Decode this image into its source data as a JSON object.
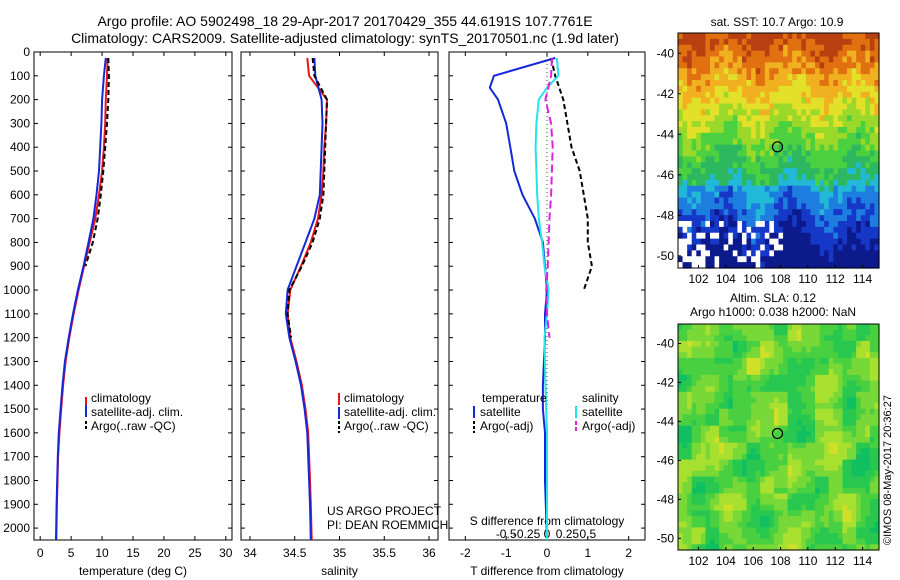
{
  "header": {
    "line1": "Argo profile: AO 5902498_18 29-Apr-2017 20170429_355 44.6191S 107.7761E",
    "line2": "Climatology: CARS2009. Satellite-adjusted climatology: synTS_20170501.nc (1.9d later)"
  },
  "colors": {
    "climatology": "#e8141a",
    "satellite": "#1428d8",
    "argo": "#000000",
    "salinity_satellite": "#22e4ee",
    "salinity_argo": "#dd22dd"
  },
  "legends": {
    "profile": [
      "climatology",
      "satellite-adj. clim.",
      "Argo(..raw -QC)"
    ],
    "diff_temperature_title": "temperature",
    "diff_salinity_title": "salinity",
    "diff_items": [
      "satellite",
      "Argo(-adj)"
    ]
  },
  "project": {
    "line1": "US ARGO PROJECT",
    "line2": "PI: DEAN ROEMMICH"
  },
  "maps": {
    "sst_title": "sat. SST: 10.7  Argo: 10.9",
    "sla_title1": "Altim. SLA: 0.12",
    "sla_title2": "Argo h1000: 0.038 h2000: NaN",
    "lat_ticks": [
      "-40",
      "-42",
      "-44",
      "-46",
      "-48",
      "-50"
    ],
    "lon_ticks": [
      "102",
      "104",
      "106",
      "108",
      "110",
      "112",
      "114"
    ],
    "argo_lon": 107.7761,
    "argo_lat": -44.6191
  },
  "side_stamp": "©IMOS 08-May-2017 20:36:27",
  "chart_data": [
    {
      "type": "line",
      "xlabel": "temperature (deg C)",
      "ylim": [
        2050,
        0
      ],
      "xlim": [
        -1,
        31
      ],
      "y_ticks": [
        "0",
        "100",
        "200",
        "300",
        "400",
        "500",
        "600",
        "700",
        "800",
        "900",
        "1000",
        "1100",
        "1200",
        "1300",
        "1400",
        "1500",
        "1600",
        "1700",
        "1800",
        "1900",
        "2000"
      ],
      "x_ticks": [
        "0",
        "5",
        "10",
        "15",
        "20",
        "25",
        "30"
      ],
      "series": [
        {
          "name": "climatology",
          "x": [
            10.9,
            10.8,
            10.6,
            10.5,
            10.3,
            10.0,
            9.5,
            8.9,
            8.0,
            7.1,
            6.2,
            5.4,
            4.7,
            4.1,
            3.7,
            3.4,
            3.1,
            2.9,
            2.8,
            2.7,
            2.6
          ],
          "y": [
            25,
            100,
            200,
            300,
            400,
            500,
            600,
            700,
            800,
            900,
            1000,
            1100,
            1200,
            1300,
            1400,
            1500,
            1600,
            1700,
            1800,
            1900,
            2050
          ]
        },
        {
          "name": "satellite-adj. clim.",
          "x": [
            10.6,
            10.3,
            10.0,
            9.9,
            9.7,
            9.5,
            9.1,
            8.6,
            7.8,
            7.0,
            6.1,
            5.3,
            4.6,
            4.0,
            3.6,
            3.3,
            3.0,
            2.85,
            2.75,
            2.65,
            2.55
          ],
          "y": [
            25,
            100,
            200,
            300,
            400,
            500,
            600,
            700,
            800,
            900,
            1000,
            1100,
            1200,
            1300,
            1400,
            1500,
            1600,
            1700,
            1800,
            1900,
            2050
          ]
        },
        {
          "name": "Argo(..raw -QC)",
          "x": [
            11.0,
            11.1,
            11.0,
            10.8,
            10.5,
            10.2,
            9.8,
            9.3,
            8.5,
            7.3
          ],
          "y": [
            25,
            100,
            200,
            300,
            400,
            500,
            600,
            700,
            800,
            900
          ]
        }
      ]
    },
    {
      "type": "line",
      "xlabel": "salinity",
      "ylim": [
        2050,
        0
      ],
      "xlim": [
        33.9,
        36.1
      ],
      "x_ticks": [
        "34",
        "34.5",
        "35",
        "35.5",
        "36"
      ],
      "series": [
        {
          "name": "climatology",
          "x": [
            34.64,
            34.66,
            34.86,
            34.85,
            34.83,
            34.82,
            34.8,
            34.76,
            34.68,
            34.57,
            34.45,
            34.42,
            34.45,
            34.52,
            34.58,
            34.62,
            34.65,
            34.66,
            34.67,
            34.68,
            34.69
          ],
          "y": [
            25,
            100,
            200,
            300,
            400,
            500,
            600,
            700,
            800,
            900,
            1000,
            1100,
            1200,
            1300,
            1400,
            1500,
            1600,
            1700,
            1800,
            1900,
            2050
          ]
        },
        {
          "name": "satellite-adj. clim.",
          "x": [
            34.72,
            34.73,
            34.8,
            34.81,
            34.8,
            34.79,
            34.78,
            34.72,
            34.62,
            34.52,
            34.42,
            34.4,
            34.44,
            34.51,
            34.57,
            34.61,
            34.64,
            34.65,
            34.66,
            34.67,
            34.68
          ],
          "y": [
            25,
            100,
            200,
            300,
            400,
            500,
            600,
            700,
            800,
            900,
            1000,
            1100,
            1200,
            1300,
            1400,
            1500,
            1600,
            1700,
            1800,
            1900,
            2050
          ]
        },
        {
          "name": "Argo(..raw -QC)",
          "x": [
            34.7,
            34.72,
            34.86,
            34.85,
            34.84,
            34.83,
            34.82,
            34.78,
            34.7,
            34.58,
            34.44,
            34.42,
            34.46
          ],
          "y": [
            25,
            100,
            200,
            300,
            400,
            500,
            600,
            700,
            800,
            900,
            1000,
            1100,
            1200
          ]
        }
      ]
    },
    {
      "type": "line",
      "xlabel": "T difference from climatology",
      "x2label": "S difference from climatology",
      "ylim": [
        2050,
        0
      ],
      "xlim": [
        -2.4,
        2.4
      ],
      "x_ticks": [
        "-2",
        "-1",
        "0",
        "1",
        "2"
      ],
      "x2_ticks": [
        "-0.5",
        "-0.25",
        "0",
        "0.25",
        "0.5"
      ],
      "series": [
        {
          "name": "temperature satellite",
          "x": [
            0.2,
            -1.3,
            -1.4,
            -1.2,
            -1.0,
            -0.9,
            -0.8,
            -0.6,
            -0.3,
            -0.1,
            -0.05,
            0,
            -0.05,
            -0.05,
            -0.1,
            -0.1,
            -0.05,
            -0.05,
            -0.05,
            0
          ],
          "y": [
            25,
            100,
            150,
            200,
            300,
            400,
            500,
            600,
            700,
            800,
            900,
            1000,
            1100,
            1200,
            1400,
            1500,
            1600,
            1700,
            1800,
            2050
          ]
        },
        {
          "name": "temperature Argo(-adj)",
          "x": [
            0.1,
            0.2,
            0.4,
            0.5,
            0.6,
            0.8,
            0.9,
            1.0,
            1.0,
            1.1,
            0.9
          ],
          "y": [
            25,
            100,
            200,
            300,
            400,
            500,
            600,
            700,
            800,
            900,
            1000
          ]
        },
        {
          "name": "salinity satellite",
          "x": [
            0.12,
            0.14,
            0.0,
            -0.1,
            -0.13,
            -0.14,
            -0.13,
            -0.12,
            -0.1,
            -0.06,
            -0.03,
            0.02,
            0.0,
            -0.03,
            -0.02,
            -0.01,
            0.0,
            0.0,
            0.0,
            0.0
          ],
          "y": [
            25,
            100,
            150,
            200,
            300,
            400,
            500,
            600,
            700,
            800,
            900,
            1000,
            1100,
            1200,
            1400,
            1500,
            1600,
            1700,
            1800,
            2050
          ]
        },
        {
          "name": "salinity Argo(-adj)",
          "x": [
            0.06,
            0.05,
            -0.02,
            0.05,
            0.07,
            0.06,
            0.05,
            0.03,
            0.02,
            0.01,
            -0.01,
            0.0,
            0.03
          ],
          "y": [
            25,
            100,
            200,
            300,
            400,
            500,
            600,
            700,
            800,
            900,
            1000,
            1100,
            1200
          ]
        }
      ]
    }
  ]
}
